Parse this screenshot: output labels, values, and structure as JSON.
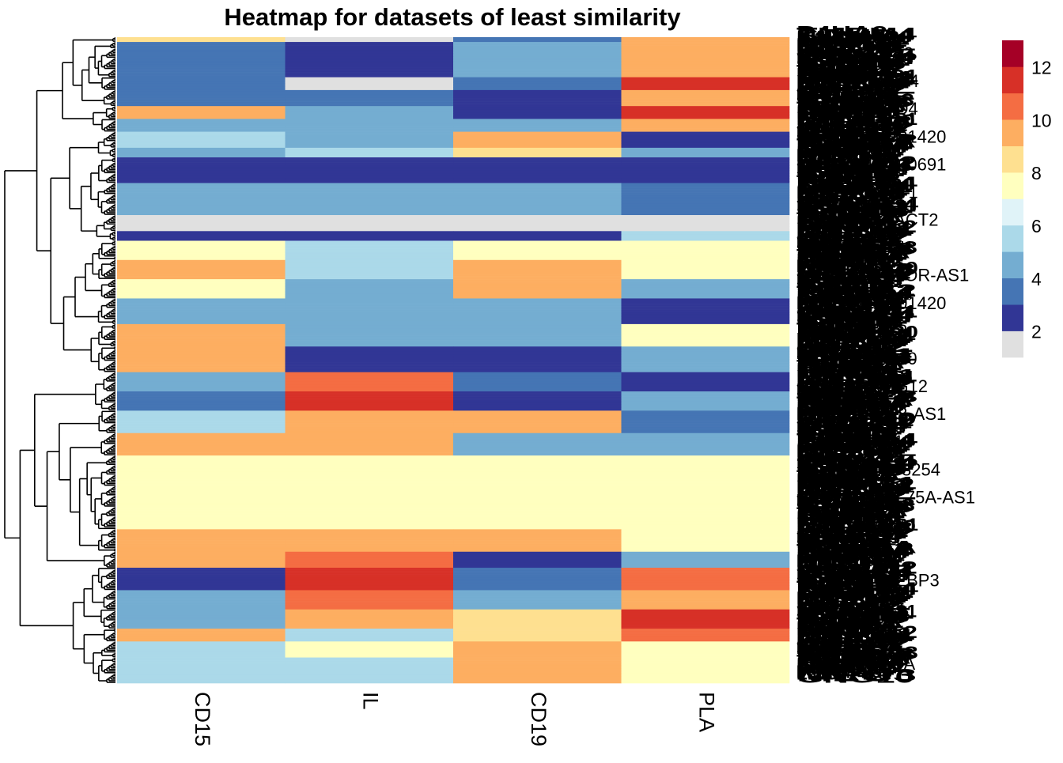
{
  "chart_data": {
    "type": "heatmap",
    "title": "Heatmap for datasets of least similarity",
    "columns": [
      "CD15",
      "IL",
      "CD19",
      "PLA"
    ],
    "row_labels_visible": [
      "P4HA2",
      "TMEM4",
      "SAMD4",
      "LINC01420",
      "LINC00691",
      "DNMT1",
      "PRKACT2",
      "PTPN1",
      "DEPTOR-AS1",
      "LINC01420",
      "MEG3",
      "GNG10",
      "SNHG12",
      "MEG8-AS1",
      "RPS15",
      "AC008254",
      "LRRC75A-AS1",
      "VWA1",
      "SRF",
      "EIF4EBP3",
      "GNL3",
      "CFP",
      "RAB5A"
    ],
    "colorscale": {
      "breaks": [
        1,
        2,
        3,
        4,
        5,
        6,
        7,
        8,
        9,
        10,
        11,
        12,
        13
      ],
      "colors": [
        "#e0e0e0",
        "#313695",
        "#4575b4",
        "#74add1",
        "#abd9e9",
        "#e0f3f8",
        "#ffffbf",
        "#fee090",
        "#fdae61",
        "#f46d43",
        "#d73027",
        "#a50026"
      ],
      "legend_ticks": [
        2,
        4,
        6,
        8,
        10,
        12
      ],
      "range": [
        1,
        13
      ]
    },
    "row_count_estimate": 400,
    "blocks": [
      {
        "n": 3,
        "v": [
          8,
          1,
          3,
          9
        ]
      },
      {
        "n": 22,
        "v": [
          3,
          2,
          4,
          9
        ]
      },
      {
        "n": 8,
        "v": [
          3,
          1,
          3,
          11
        ]
      },
      {
        "n": 10,
        "v": [
          3,
          3,
          2,
          9
        ]
      },
      {
        "n": 8,
        "v": [
          9,
          4,
          2,
          11
        ]
      },
      {
        "n": 8,
        "v": [
          4,
          4,
          4,
          9
        ]
      },
      {
        "n": 10,
        "v": [
          5,
          4,
          9,
          2
        ]
      },
      {
        "n": 6,
        "v": [
          4,
          5,
          8,
          4
        ]
      },
      {
        "n": 16,
        "v": [
          2,
          2,
          2,
          2
        ]
      },
      {
        "n": 20,
        "v": [
          4,
          4,
          4,
          3
        ]
      },
      {
        "n": 10,
        "v": [
          1,
          1,
          1,
          1
        ]
      },
      {
        "n": 6,
        "v": [
          2,
          2,
          2,
          5
        ]
      },
      {
        "n": 12,
        "v": [
          7,
          5,
          7,
          7
        ]
      },
      {
        "n": 12,
        "v": [
          9,
          5,
          9,
          7
        ]
      },
      {
        "n": 12,
        "v": [
          7,
          4,
          9,
          4
        ]
      },
      {
        "n": 16,
        "v": [
          4,
          4,
          4,
          2
        ]
      },
      {
        "n": 14,
        "v": [
          9,
          4,
          4,
          7
        ]
      },
      {
        "n": 16,
        "v": [
          9,
          2,
          2,
          4
        ]
      },
      {
        "n": 12,
        "v": [
          4,
          10,
          3,
          2
        ]
      },
      {
        "n": 12,
        "v": [
          3,
          11,
          2,
          4
        ]
      },
      {
        "n": 14,
        "v": [
          5,
          9,
          9,
          3
        ]
      },
      {
        "n": 14,
        "v": [
          9,
          9,
          4,
          4
        ]
      },
      {
        "n": 46,
        "v": [
          7,
          7,
          7,
          7
        ]
      },
      {
        "n": 14,
        "v": [
          9,
          9,
          9,
          7
        ]
      },
      {
        "n": 10,
        "v": [
          9,
          10,
          2,
          4
        ]
      },
      {
        "n": 14,
        "v": [
          2,
          11,
          3,
          10
        ]
      },
      {
        "n": 12,
        "v": [
          4,
          10,
          4,
          9
        ]
      },
      {
        "n": 12,
        "v": [
          4,
          9,
          8,
          11
        ]
      },
      {
        "n": 8,
        "v": [
          9,
          5,
          8,
          10
        ]
      },
      {
        "n": 10,
        "v": [
          5,
          7,
          9,
          7
        ]
      },
      {
        "n": 16,
        "v": [
          5,
          5,
          9,
          7
        ]
      }
    ]
  }
}
